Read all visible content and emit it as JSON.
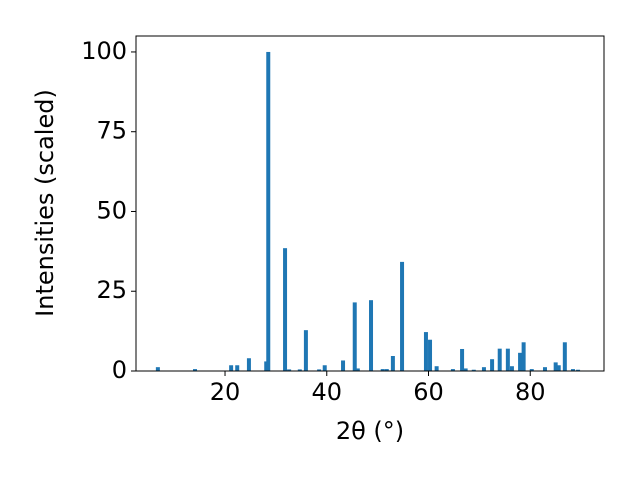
{
  "chart_data": {
    "type": "bar",
    "xlabel": "2θ (°)",
    "ylabel": "Intensities (scaled)",
    "color": "#1f77b4",
    "x": [
      6.8,
      14.1,
      21.2,
      22.4,
      24.7,
      28.1,
      28.5,
      31.8,
      32.6,
      34.7,
      35.9,
      38.5,
      39.6,
      43.2,
      45.5,
      46.1,
      48.7,
      51.0,
      51.8,
      53.0,
      54.8,
      59.5,
      60.3,
      61.6,
      64.8,
      66.6,
      67.3,
      68.9,
      70.9,
      72.5,
      74.0,
      75.6,
      76.4,
      78.0,
      78.7,
      80.3,
      82.9,
      85.0,
      85.6,
      86.8,
      88.4,
      89.4
    ],
    "values": [
      1.2,
      0.6,
      1.8,
      1.8,
      4,
      3,
      100,
      38.5,
      0.5,
      0.5,
      12.8,
      0.5,
      1.8,
      3.3,
      21.5,
      0.8,
      22.2,
      0.6,
      0.6,
      4.7,
      34.2,
      12.2,
      9.8,
      1.5,
      0.6,
      6.9,
      0.8,
      0.4,
      1.2,
      3.7,
      7.0,
      7.0,
      1.5,
      5.7,
      9.0,
      0.6,
      1.2,
      2.7,
      1.8,
      9.0,
      0.6,
      0.4
    ],
    "xlim": [
      2.5,
      94.5
    ],
    "ylim": [
      0,
      105
    ],
    "xticks": [
      20,
      40,
      60,
      80
    ],
    "yticks": [
      0,
      25,
      50,
      75,
      100
    ]
  }
}
